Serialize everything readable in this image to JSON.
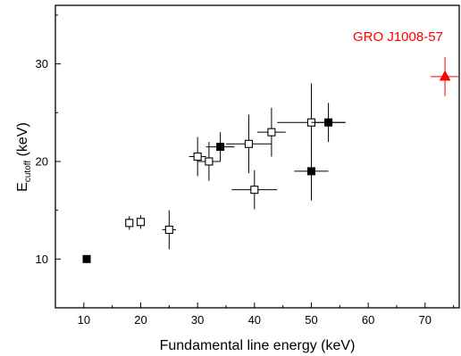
{
  "chart_data": {
    "type": "scatter",
    "title": "",
    "xlabel": "Fundamental line energy (keV)",
    "ylabel_main": "E",
    "ylabel_sub": "cutoff",
    "ylabel_unit": " (keV)",
    "xlim": [
      5,
      76
    ],
    "ylim": [
      5,
      36
    ],
    "xticks": [
      10,
      20,
      30,
      40,
      50,
      60,
      70
    ],
    "yticks": [
      10,
      20,
      30
    ],
    "grid": false,
    "legend": "none",
    "annotation": {
      "text": "GRO J1008-57",
      "color": "#ff0000"
    },
    "series": [
      {
        "marker": "square-open",
        "color": "#000000",
        "points": [
          {
            "x": 18,
            "y": 13.7,
            "xerr": 0.7,
            "yerr": 0.7
          },
          {
            "x": 20,
            "y": 13.8,
            "xerr": 0.7,
            "yerr": 0.7
          },
          {
            "x": 25,
            "y": 13.0,
            "xerr": 1.2,
            "yerr": 2.0
          },
          {
            "x": 30,
            "y": 20.5,
            "xerr": 1.5,
            "yerr": 2.0
          },
          {
            "x": 32,
            "y": 20.0,
            "xerr": 2.0,
            "yerr": 2.0
          },
          {
            "x": 39,
            "y": 21.8,
            "xerr": 4.0,
            "yerr": 3.0
          },
          {
            "x": 40,
            "y": 17.1,
            "xerr": 4.0,
            "yerr": 2.0
          },
          {
            "x": 43,
            "y": 23.0,
            "xerr": 2.5,
            "yerr": 2.5
          },
          {
            "x": 50,
            "y": 24.0,
            "xerr": 6.0,
            "yerr": 4.0
          }
        ]
      },
      {
        "marker": "square-filled",
        "color": "#000000",
        "points": [
          {
            "x": 10.5,
            "y": 10.0,
            "xerr": 0.4,
            "yerr": 0.4
          },
          {
            "x": 34,
            "y": 21.5,
            "xerr": 2.5,
            "yerr": 1.5
          },
          {
            "x": 50,
            "y": 19.0,
            "xerr": 3.0,
            "yerr": 3.0
          },
          {
            "x": 53,
            "y": 24.0,
            "xerr": 3.0,
            "yerr": 2.0
          }
        ]
      },
      {
        "marker": "triangle-filled",
        "color": "#ff0000",
        "points": [
          {
            "x": 73.5,
            "y": 28.7,
            "xerr": 2.5,
            "yerr": 2.0
          }
        ]
      }
    ]
  }
}
